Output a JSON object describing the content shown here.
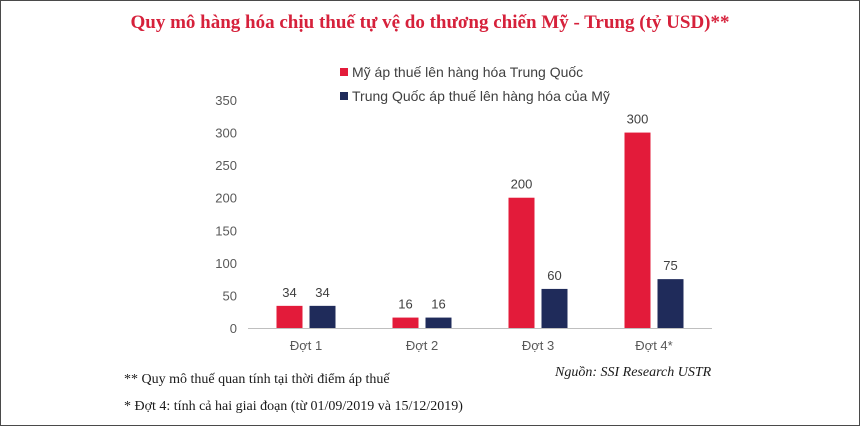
{
  "chart_data": {
    "type": "bar",
    "title": "Quy mô hàng hóa chịu thuế tự vệ do thương chiến Mỹ - Trung (tỷ USD)**",
    "categories": [
      "Đợt 1",
      "Đợt 2",
      "Đợt 3",
      "Đợt 4*"
    ],
    "series": [
      {
        "name": "Mỹ áp thuế lên hàng hóa Trung Quốc",
        "color": "#e31b3a",
        "values": [
          34,
          16,
          200,
          300
        ]
      },
      {
        "name": "Trung Quốc áp thuế lên hàng hóa của Mỹ",
        "color": "#1f2b5a",
        "values": [
          34,
          16,
          60,
          75
        ]
      }
    ],
    "yticks": [
      0,
      50,
      100,
      150,
      200,
      250,
      300,
      350
    ],
    "ylim": [
      0,
      350
    ],
    "legend_position": "top-center",
    "grid": false,
    "data_labels": true
  },
  "notes": [
    "** Quy mô thuế quan tính tại thời điểm áp thuế",
    "* Đợt 4: tính cả hai giai đoạn (từ 01/09/2019 và 15/12/2019)"
  ],
  "source": "Nguồn: SSI Research USTR"
}
